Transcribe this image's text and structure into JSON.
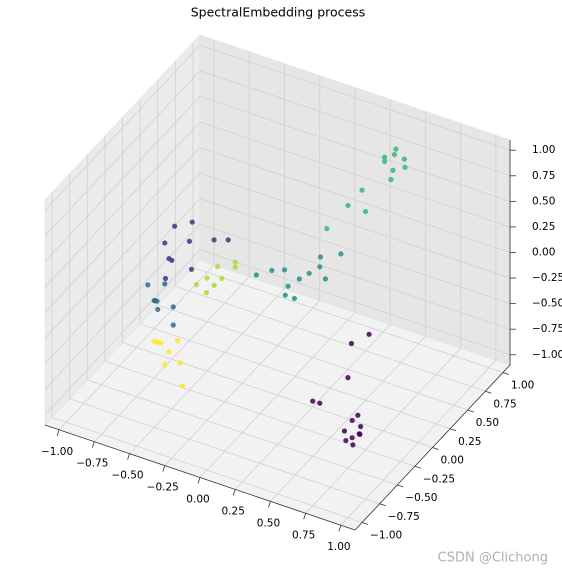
{
  "chart_data": {
    "type": "scatter3d",
    "title": "SpectralEmbedding process",
    "watermark": "CSDN @Clichong",
    "xlim": [
      -1.1,
      1.1
    ],
    "ylim": [
      -1.1,
      1.1
    ],
    "zlim": [
      -1.1,
      1.1
    ],
    "xticks": [
      {
        "value": -1,
        "label": "−1.00"
      },
      {
        "value": -0.75,
        "label": "−0.75"
      },
      {
        "value": -0.5,
        "label": "−0.50"
      },
      {
        "value": -0.25,
        "label": "−0.25"
      },
      {
        "value": 0,
        "label": "0.00"
      },
      {
        "value": 0.25,
        "label": "0.25"
      },
      {
        "value": 0.5,
        "label": "0.50"
      },
      {
        "value": 0.75,
        "label": "0.75"
      },
      {
        "value": 1,
        "label": "1.00"
      }
    ],
    "yticks": [
      {
        "value": -1,
        "label": "−1.00"
      },
      {
        "value": -0.75,
        "label": "−0.75"
      },
      {
        "value": -0.5,
        "label": "−0.50"
      },
      {
        "value": -0.25,
        "label": "−0.25"
      },
      {
        "value": 0,
        "label": "0.00"
      },
      {
        "value": 0.25,
        "label": "0.25"
      },
      {
        "value": 0.5,
        "label": "0.50"
      },
      {
        "value": 0.75,
        "label": "0.75"
      },
      {
        "value": 1,
        "label": "1.00"
      }
    ],
    "zticks": [
      {
        "value": -1,
        "label": "−1.00"
      },
      {
        "value": -0.75,
        "label": "−0.75"
      },
      {
        "value": -0.5,
        "label": "−0.50"
      },
      {
        "value": -0.25,
        "label": "−0.25"
      },
      {
        "value": 0,
        "label": "0.00"
      },
      {
        "value": 0.25,
        "label": "0.25"
      },
      {
        "value": 0.5,
        "label": "0.50"
      },
      {
        "value": 0.75,
        "label": "0.75"
      },
      {
        "value": 1,
        "label": "1.00"
      }
    ],
    "grid": true,
    "series": [
      {
        "color": "#440154",
        "x": [
          0.68,
          0.72,
          0.65,
          0.7,
          0.74,
          0.66,
          0.71,
          0.62,
          0.69,
          0.55,
          0.45,
          0.5,
          0.35,
          0.6
        ],
        "y": [
          -0.3,
          -0.27,
          -0.33,
          -0.22,
          -0.32,
          -0.26,
          -0.35,
          -0.29,
          -0.24,
          -0.1,
          -0.3,
          0.05,
          -0.2,
          0.1
        ],
        "z": [
          -0.98,
          -0.95,
          -1.0,
          -0.92,
          -0.9,
          -0.85,
          -1.0,
          -0.95,
          -0.8,
          -0.6,
          -0.75,
          -0.4,
          -0.85,
          -0.3
        ]
      },
      {
        "color": "#35b779",
        "x": [
          0.5,
          0.55,
          0.45,
          0.52,
          0.48,
          0.58,
          0.42,
          0.53,
          0.3,
          0.2,
          0.35,
          0.4
        ],
        "y": [
          0.66,
          0.7,
          0.62,
          0.6,
          0.72,
          0.65,
          0.68,
          0.55,
          0.4,
          0.3,
          0.5,
          0.45
        ],
        "z": [
          1.0,
          0.95,
          0.98,
          0.9,
          1.0,
          0.92,
          0.88,
          0.85,
          0.6,
          0.4,
          0.7,
          0.55
        ]
      },
      {
        "color": "#21908d",
        "x": [
          0.1,
          0.15,
          0.05,
          0.2,
          0.0,
          0.12,
          0.25,
          -0.05,
          0.18,
          0.08,
          0.3,
          -0.1
        ],
        "y": [
          0.11,
          0.15,
          0.05,
          0.2,
          0.1,
          0.0,
          0.18,
          0.02,
          0.25,
          -0.05,
          0.3,
          -0.1
        ],
        "z": [
          0.0,
          0.05,
          -0.05,
          0.1,
          0.05,
          -0.1,
          0.02,
          0.08,
          0.15,
          -0.05,
          0.2,
          0.1
        ]
      },
      {
        "color": "#46327e",
        "x": [
          -0.55,
          -0.6,
          -0.5,
          -0.45,
          -0.58,
          -0.4,
          -0.35,
          -0.52,
          -0.3,
          -0.48
        ],
        "y": [
          -0.44,
          -0.4,
          -0.5,
          -0.35,
          -0.3,
          -0.42,
          -0.2,
          -0.55,
          -0.1,
          -0.25
        ],
        "z": [
          0.3,
          0.4,
          0.35,
          0.45,
          0.5,
          0.25,
          0.4,
          0.2,
          0.35,
          0.55
        ]
      },
      {
        "color": "#31688e",
        "x": [
          -0.62,
          -0.58,
          -0.65,
          -0.55,
          -0.6,
          -0.5,
          -0.66,
          -0.45
        ],
        "y": [
          -0.5,
          -0.55,
          -0.45,
          -0.6,
          -0.4,
          -0.48,
          -0.52,
          -0.58
        ],
        "z": [
          -0.1,
          -0.05,
          -0.15,
          -0.08,
          0.0,
          -0.12,
          0.05,
          -0.2
        ]
      },
      {
        "color": "#addc30",
        "x": [
          -0.35,
          -0.3,
          -0.4,
          -0.25,
          -0.2,
          -0.32,
          -0.28,
          -0.15
        ],
        "y": [
          -0.3,
          -0.25,
          -0.35,
          -0.4,
          -0.2,
          -0.15,
          -0.45,
          -0.3
        ],
        "z": [
          0.1,
          0.2,
          0.05,
          0.15,
          0.25,
          0.0,
          0.1,
          0.3
        ]
      },
      {
        "color": "#fde725",
        "x": [
          -0.55,
          -0.5,
          -0.6,
          -0.45,
          -0.4,
          -0.52,
          -0.35,
          -0.3
        ],
        "y": [
          -0.6,
          -0.65,
          -0.55,
          -0.7,
          -0.62,
          -0.5,
          -0.68,
          -0.75
        ],
        "z": [
          -0.4,
          -0.35,
          -0.45,
          -0.5,
          -0.3,
          -0.55,
          -0.45,
          -0.6
        ]
      }
    ]
  }
}
